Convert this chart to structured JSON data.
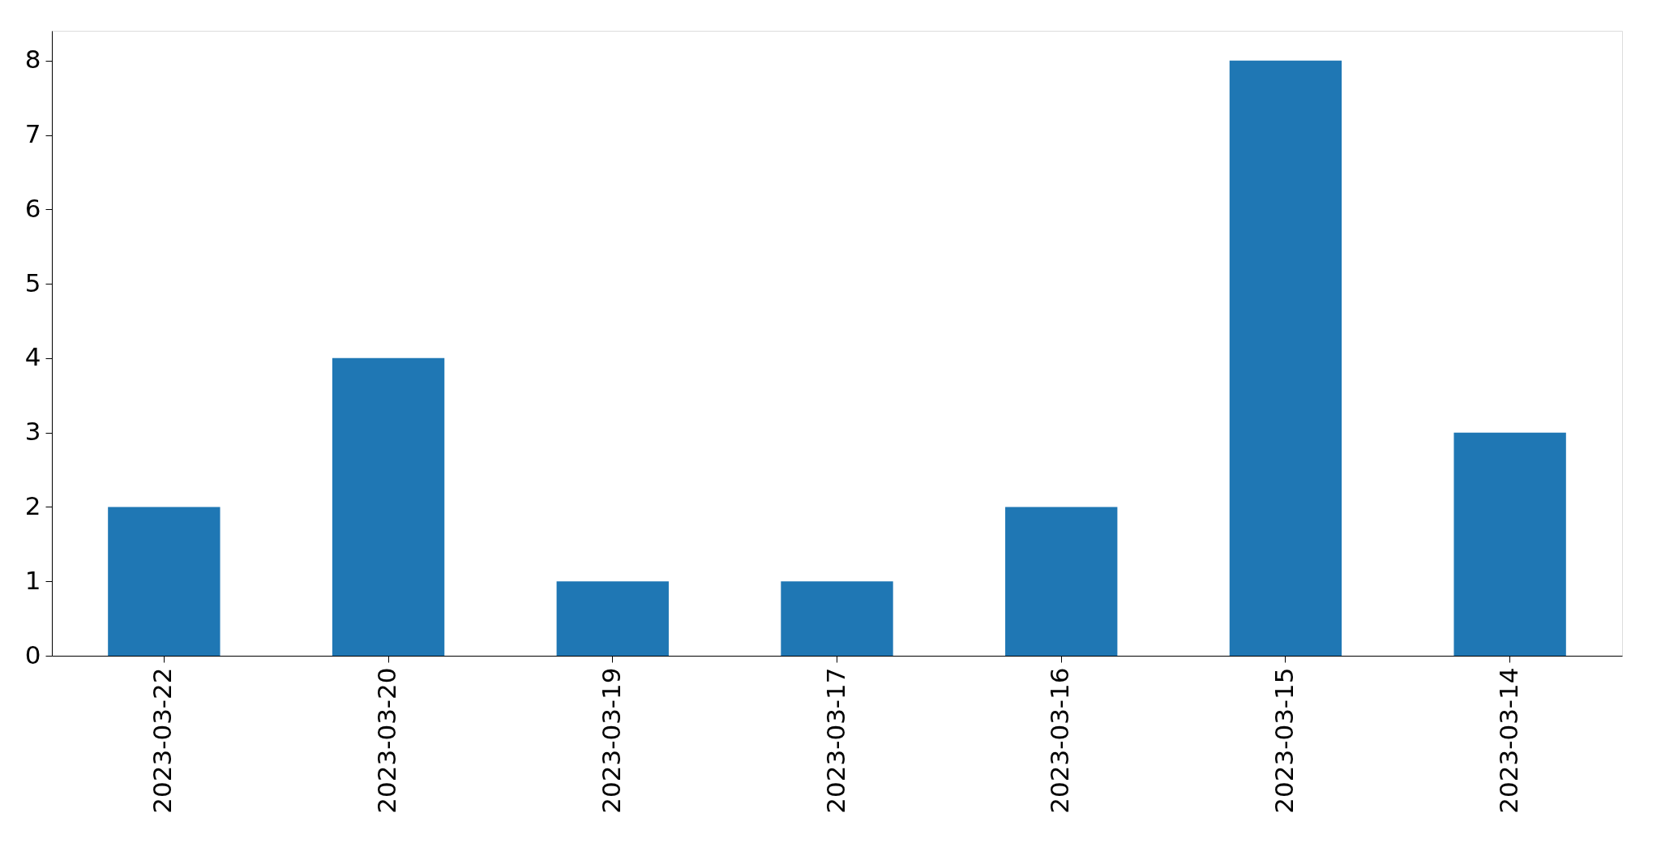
{
  "chart_data": {
    "type": "bar",
    "categories": [
      "2023-03-22",
      "2023-03-20",
      "2023-03-19",
      "2023-03-17",
      "2023-03-16",
      "2023-03-15",
      "2023-03-14"
    ],
    "values": [
      2,
      4,
      1,
      1,
      2,
      8,
      3
    ],
    "color": "#1f77b4",
    "ylim": [
      0,
      8.4
    ],
    "yticks": [
      0,
      1,
      2,
      3,
      4,
      5,
      6,
      7,
      8
    ],
    "grid": false
  }
}
